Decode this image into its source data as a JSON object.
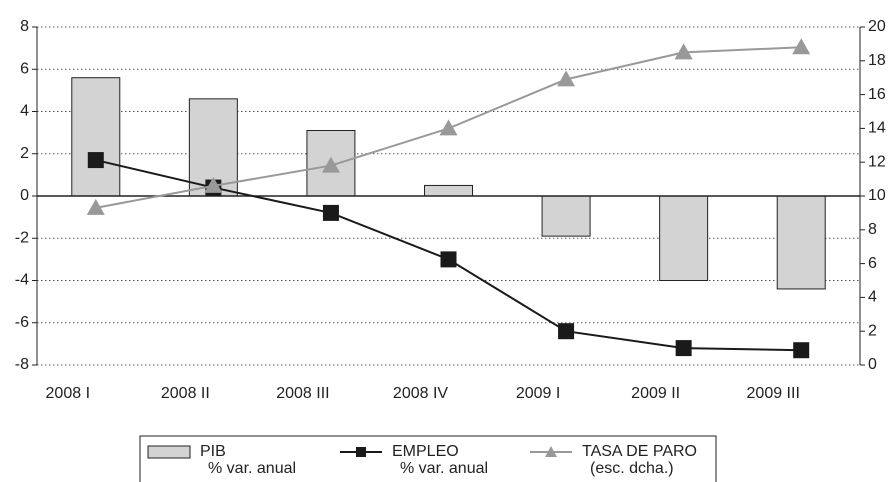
{
  "chart_data": {
    "type": "bar-line",
    "categories": [
      "2008 I",
      "2008 II",
      "2008 III",
      "2008 IV",
      "2009 I",
      "2009 II",
      "2009 III"
    ],
    "series": [
      {
        "name": "PIB\n% var. anual",
        "type": "bar",
        "color": "#d3d3d3",
        "values": [
          5.6,
          4.6,
          3.1,
          0.5,
          -1.9,
          -4.0,
          -4.4
        ]
      },
      {
        "name": "EMPLEO\n% var. anual",
        "type": "line",
        "marker": "square",
        "color": "#1a1a1a",
        "values": [
          1.7,
          0.4,
          -0.8,
          -3.0,
          -6.4,
          -7.2,
          -7.3
        ]
      },
      {
        "name": "TASA DE PARO\n(esc. dcha.)",
        "type": "line",
        "marker": "triangle",
        "color": "#999999",
        "axis": "y2",
        "values": [
          9.3,
          10.6,
          11.8,
          14.0,
          16.9,
          18.5,
          18.8
        ]
      }
    ],
    "ylim": [
      -8,
      8
    ],
    "yticks": [
      -8,
      -6,
      -4,
      -2,
      0,
      2,
      4,
      6,
      8
    ],
    "y2lim": [
      0,
      20
    ],
    "y2ticks": [
      0,
      2,
      4,
      6,
      8,
      10,
      12,
      14,
      16,
      18,
      20
    ],
    "grid": true,
    "legend": "bottom"
  }
}
